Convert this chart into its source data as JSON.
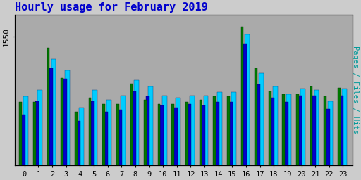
{
  "title": "Hourly usage for February 2019",
  "title_color": "#0000cc",
  "title_fontsize": 11,
  "ylabel_right": "Pages / Files / Hits",
  "hours": [
    0,
    1,
    2,
    3,
    4,
    5,
    6,
    7,
    8,
    9,
    10,
    11,
    12,
    13,
    14,
    15,
    16,
    17,
    18,
    19,
    20,
    21,
    22,
    23
  ],
  "hits": [
    310,
    340,
    480,
    430,
    260,
    340,
    295,
    315,
    385,
    355,
    315,
    305,
    315,
    315,
    330,
    330,
    590,
    415,
    355,
    320,
    345,
    340,
    290,
    345
  ],
  "files": [
    230,
    290,
    440,
    390,
    200,
    290,
    240,
    250,
    335,
    310,
    270,
    260,
    275,
    270,
    285,
    285,
    550,
    365,
    305,
    285,
    315,
    315,
    255,
    315
  ],
  "pages": [
    285,
    285,
    530,
    395,
    240,
    305,
    275,
    275,
    370,
    295,
    275,
    275,
    285,
    295,
    310,
    310,
    625,
    440,
    335,
    320,
    320,
    355,
    310,
    350
  ],
  "hits_color": "#00ccff",
  "files_color": "#0000cc",
  "pages_color": "#007700",
  "bg_color": "#cccccc",
  "plot_bg_color": "#aaaaaa",
  "ylim_min": 0,
  "ylim_max": 680,
  "ytick_val": 580,
  "ytick_label": "1550",
  "bar_width": 0.27,
  "group_width": 0.9
}
